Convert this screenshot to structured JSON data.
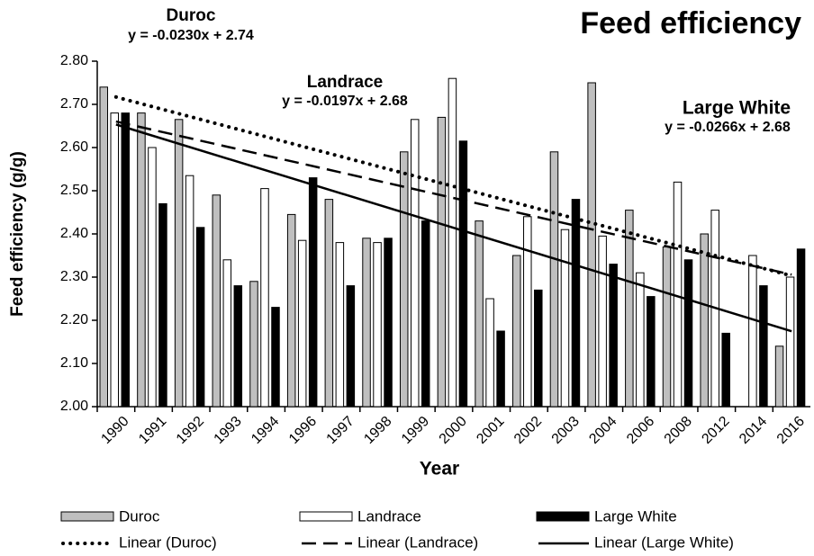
{
  "chart_data": {
    "type": "bar",
    "title": "Feed efficiency",
    "x_label": "Year",
    "y_label": "Feed efficiency (g/g)",
    "categories": [
      "1990",
      "1991",
      "1992",
      "1993",
      "1994",
      "1996",
      "1997",
      "1998",
      "1999",
      "2000",
      "2001",
      "2002",
      "2003",
      "2004",
      "2006",
      "2008",
      "2012",
      "2014",
      "2016"
    ],
    "series": [
      {
        "name": "Duroc",
        "color": "#bfbfbf",
        "values": [
          2.74,
          2.68,
          2.665,
          2.49,
          2.29,
          2.445,
          2.48,
          2.39,
          2.59,
          2.67,
          2.43,
          2.35,
          2.59,
          2.75,
          2.455,
          2.37,
          2.4,
          null,
          2.14
        ]
      },
      {
        "name": "Landrace",
        "color": "#ffffff",
        "values": [
          2.68,
          2.6,
          2.535,
          2.34,
          2.505,
          2.385,
          2.38,
          2.38,
          2.665,
          2.76,
          2.25,
          2.44,
          2.41,
          2.395,
          2.31,
          2.52,
          2.455,
          2.35,
          2.3
        ]
      },
      {
        "name": "Large White",
        "color": "#000000",
        "values": [
          2.68,
          2.47,
          2.415,
          2.28,
          2.23,
          2.53,
          2.28,
          2.39,
          2.43,
          2.615,
          2.175,
          2.27,
          2.48,
          2.33,
          2.255,
          2.34,
          2.17,
          2.28,
          2.365
        ]
      }
    ],
    "trendlines": [
      {
        "name": "Linear (Duroc)",
        "label": "Duroc",
        "equation": "y = -0.0230x + 2.74",
        "slope": -0.023,
        "intercept": 2.74,
        "style": "dotted"
      },
      {
        "name": "Linear (Landrace)",
        "label": "Landrace",
        "equation": "y = -0.0197x + 2.68",
        "slope": -0.0197,
        "intercept": 2.68,
        "style": "dashed"
      },
      {
        "name": "Linear (Large White)",
        "label": "Large White",
        "equation": "y = -0.0266x + 2.68",
        "slope": -0.0266,
        "intercept": 2.68,
        "style": "solid"
      }
    ],
    "ylim": [
      2.0,
      2.8
    ],
    "yticks": [
      {
        "value": 2.0,
        "label": "2.00"
      },
      {
        "value": 2.1,
        "label": "2.10"
      },
      {
        "value": 2.2,
        "label": "2.20"
      },
      {
        "value": 2.3,
        "label": "2.30"
      },
      {
        "value": 2.4,
        "label": "2.40"
      },
      {
        "value": 2.5,
        "label": "2.50"
      },
      {
        "value": 2.6,
        "label": "2.60"
      },
      {
        "value": 2.7,
        "label": "2.70"
      },
      {
        "value": 2.8,
        "label": "2.80"
      }
    ],
    "grid": false
  }
}
